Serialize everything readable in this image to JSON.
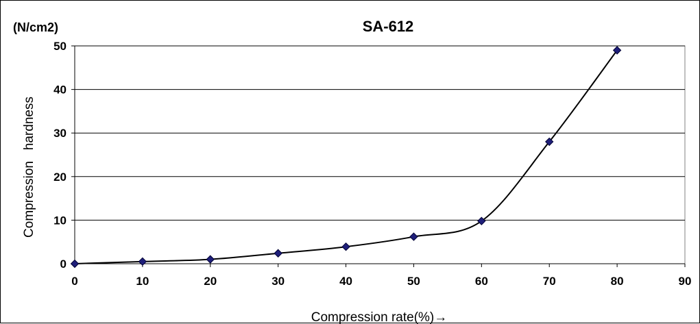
{
  "chart_data": {
    "type": "line",
    "title": "SA-612",
    "unit_label": "(N/cm2)",
    "xlabel": "Compression rate(%)→",
    "ylabel": "Compression   hardness",
    "xlim": [
      0,
      90
    ],
    "ylim": [
      0,
      50
    ],
    "x_ticks": [
      "0",
      "10",
      "20",
      "30",
      "40",
      "50",
      "60",
      "70",
      "80",
      "90"
    ],
    "y_ticks": [
      "0",
      "10",
      "20",
      "30",
      "40",
      "50"
    ],
    "grid": "horizontal",
    "legend": "none",
    "series": [
      {
        "x": [
          0,
          10,
          20,
          30,
          40,
          50,
          60,
          70,
          80
        ],
        "y": [
          0,
          0.5,
          1.0,
          2.4,
          3.9,
          6.2,
          9.8,
          28.0,
          49.0
        ]
      }
    ],
    "colors": {
      "line": "#000000",
      "marker_fill": "#1f1f7a",
      "marker_stroke": "#000033",
      "grid": "#000000"
    }
  }
}
